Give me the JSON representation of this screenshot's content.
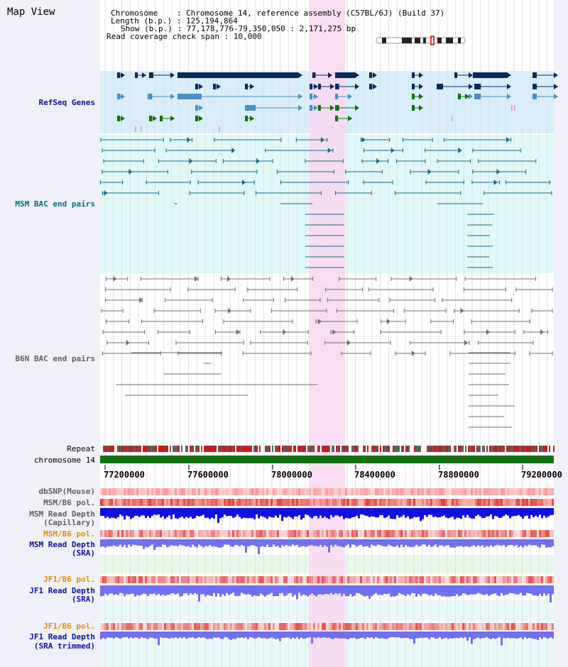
{
  "title": "Map View",
  "header": {
    "chromosome_label": "Chromosome",
    "chromosome_value": "Chromosome 14, reference assembly (C57BL/6J) (Build 37)",
    "length_label": "Length (b.p.)",
    "length_value": "125,194,864",
    "show_label": "Show (b.p.)",
    "show_value": "77,178,776-79,350,050 : 2,171,275 bp",
    "coverage_label": "Read coverage check span",
    "coverage_value": "10,000"
  },
  "tracks": {
    "refseq": "RefSeq Genes",
    "msm_bac": "MSM BAC end pairs",
    "b6n_bac": "B6N BAC end pairs",
    "repeat": "Repeat",
    "chromosome": "chromosome 14",
    "dbsnp": "dbSNP(Mouse)",
    "msm_b6_pol_1": "MSM/B6 pol.",
    "msm_depth_cap_1": "MSM Read Depth",
    "msm_depth_cap_2": "(Capillary)",
    "msm_b6_pol_2": "MSM/B6 pol.",
    "msm_depth_sra_1": "MSM Read Depth",
    "msm_depth_sra_2": "(SRA)",
    "jf1_b6_pol_1": "JF1/B6 pol.",
    "jf1_depth_sra_1": "JF1 Read Depth",
    "jf1_depth_sra_2": "(SRA)",
    "jf1_b6_pol_2": "JF1/B6 pol.",
    "jf1_depth_trim_1": "JF1 Read Depth",
    "jf1_depth_trim_2": "(SRA trimmed)"
  },
  "axis": {
    "ticks": [
      "77200000",
      "77600000",
      "78000000",
      "78400000",
      "78800000",
      "79200000"
    ]
  },
  "colors": {
    "refseq_bg": "#d8eefa",
    "bac_bg": "#e0f8f8",
    "highlight": "#f8d8f0",
    "dark_navy": "#0a2a5a",
    "gene_teal": "#4a90c0",
    "gene_green": "#107010",
    "chromosome_green": "#107010",
    "msm_line": "#1a6a8a",
    "b6n_line": "#707070",
    "depth_blue": "#1010e0",
    "depth_light": "#7070f0"
  }
}
